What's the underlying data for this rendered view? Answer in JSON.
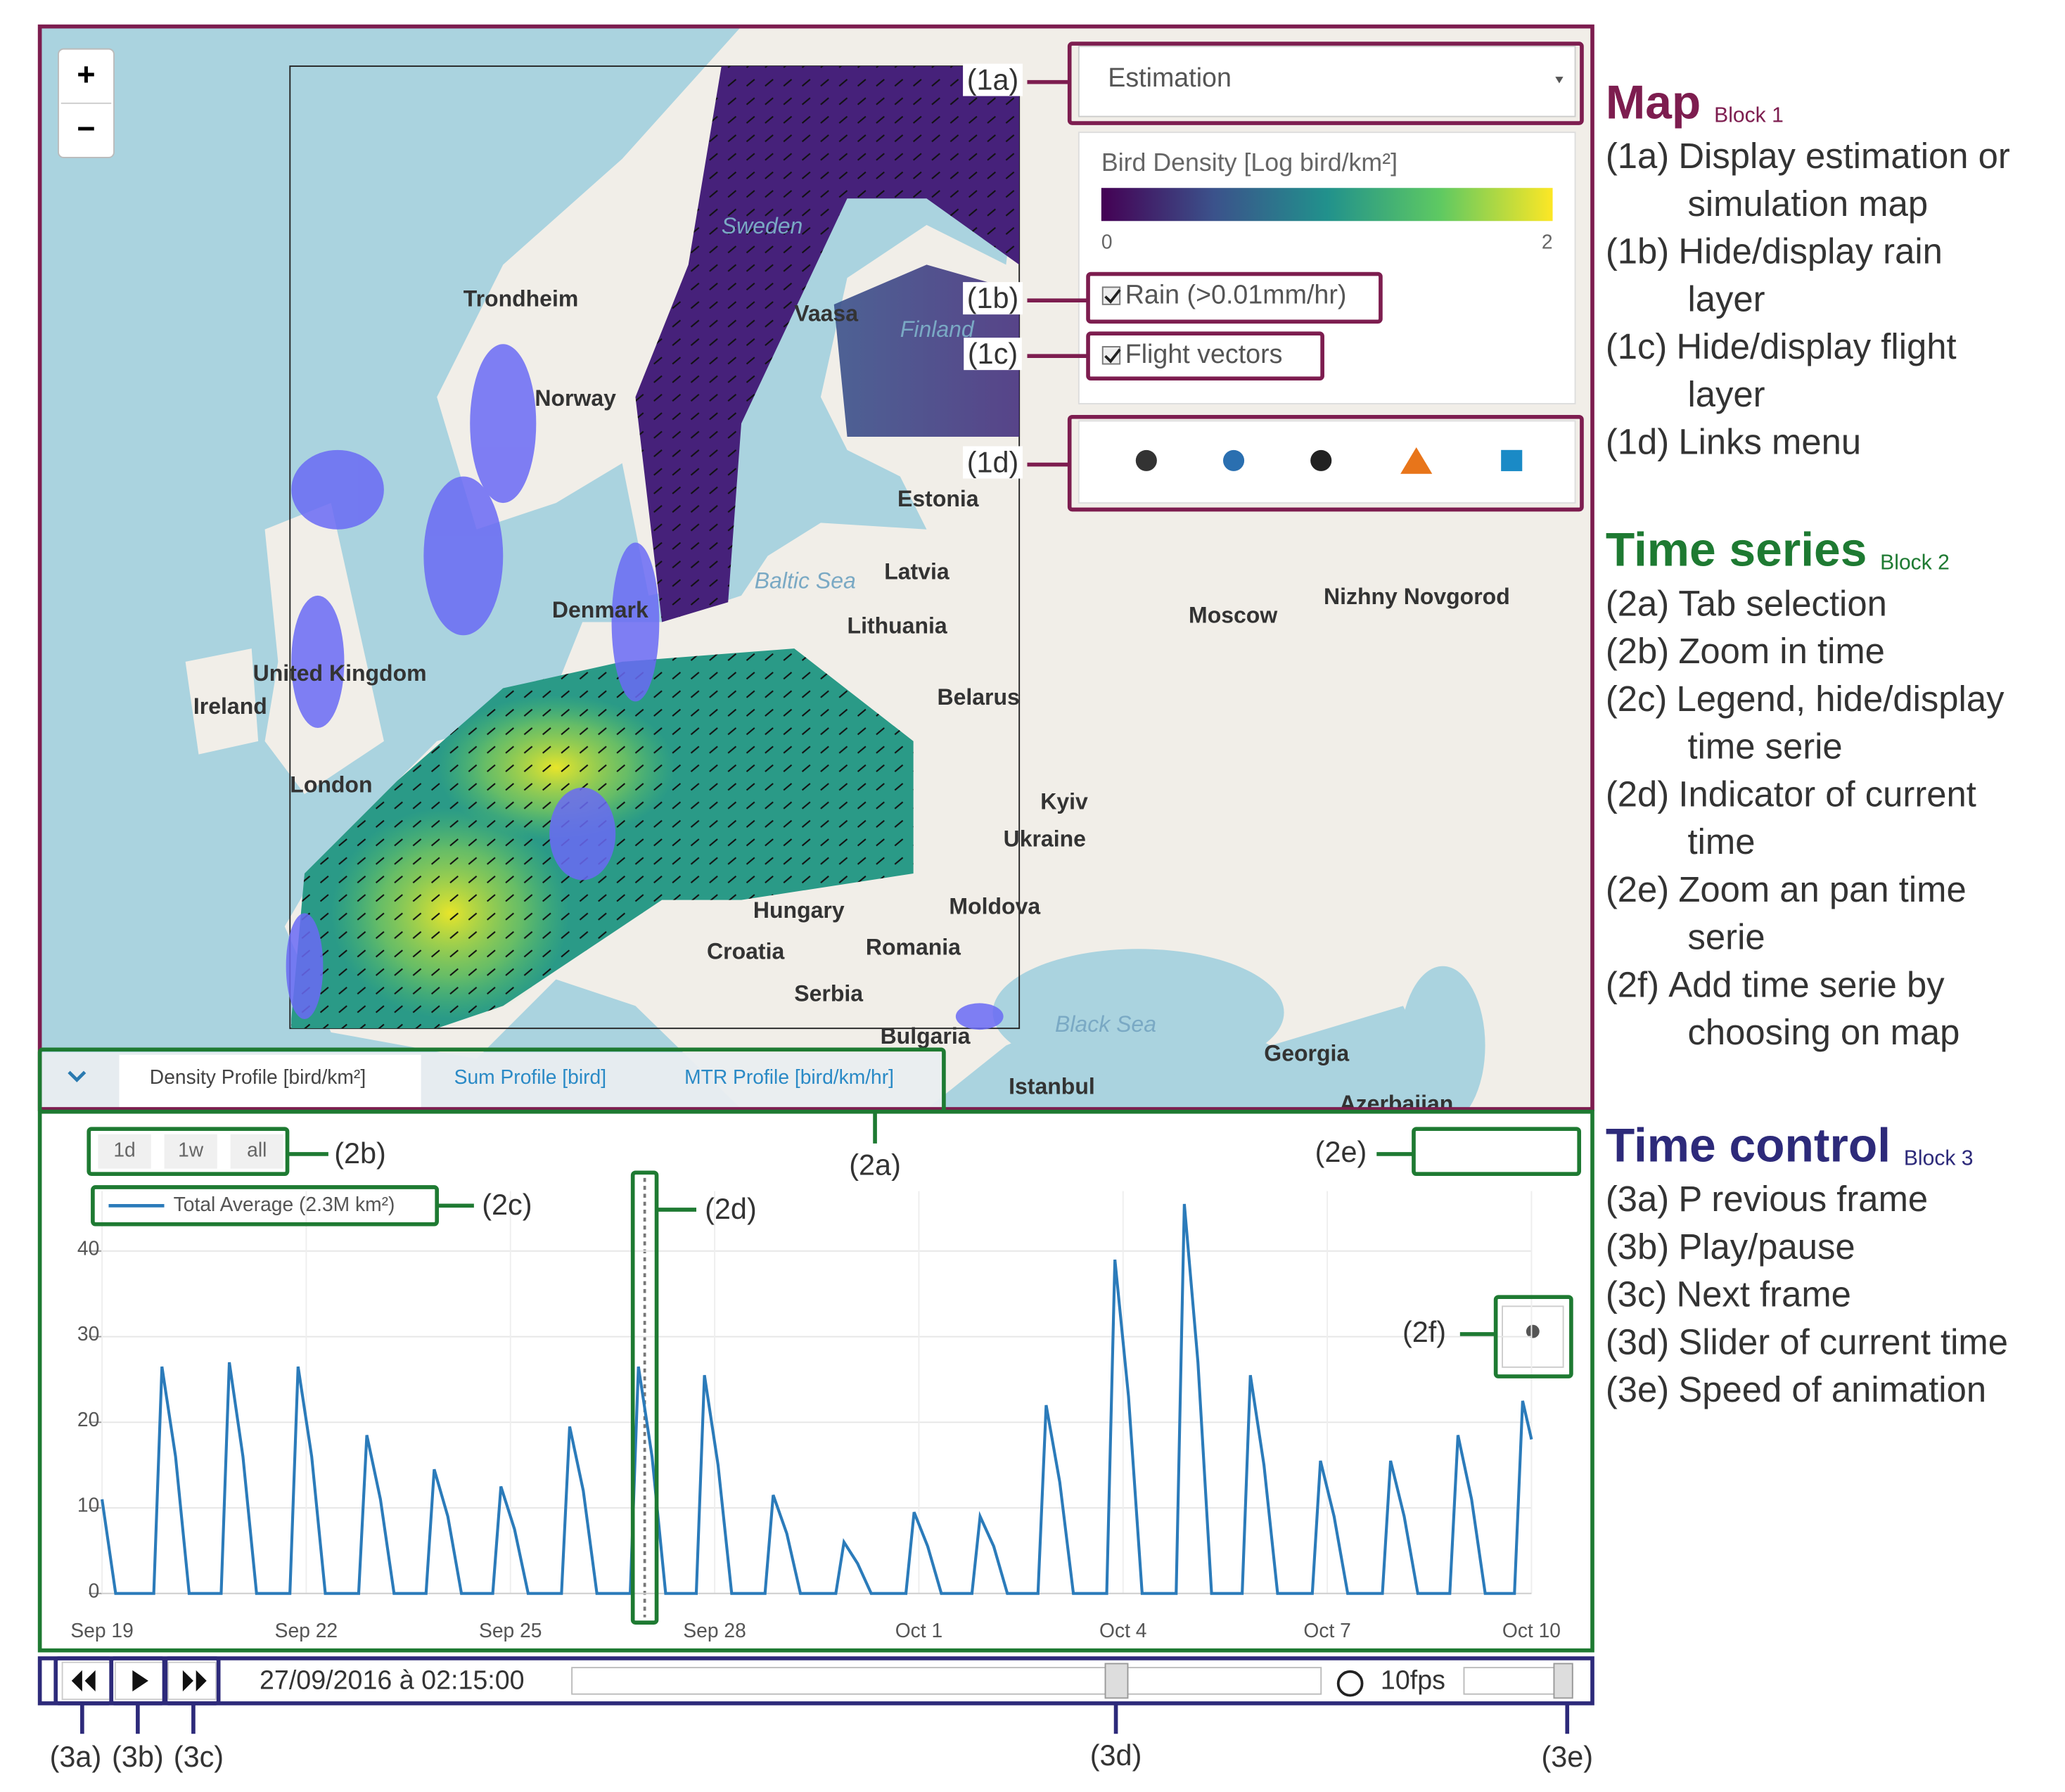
{
  "map": {
    "zoom_in": "+",
    "zoom_out": "−",
    "places": [
      "Trondheim",
      "Norway",
      "Vaasa",
      "Sweden",
      "Finland",
      "Estonia",
      "Latvia",
      "Lithuania",
      "Denmark",
      "Belarus",
      "Moscow",
      "Nizhny Novgorod",
      "Kyiv",
      "Ukraine",
      "Moldova",
      "Hungary",
      "Romania",
      "Croatia",
      "Serbia",
      "Bulgaria",
      "Istanbul",
      "Georgia",
      "Azerbaijan",
      "United Kingdom",
      "Ireland",
      "London",
      "Black Sea",
      "Baltic Sea"
    ],
    "dropdown": "Estimation",
    "legend_title": "Bird Density [Log bird/km²]",
    "colorbar_min": 0,
    "colorbar_max": 2,
    "rain_checkbox": "Rain (>0.01mm/hr)",
    "flight_checkbox": "Flight vectors"
  },
  "tabs": [
    "Density Profile [bird/km²]",
    "Sum Profile [bird]",
    "MTR Profile [bird/km/hr]"
  ],
  "range_buttons": [
    "1d",
    "1w",
    "all"
  ],
  "chart_data": {
    "type": "line",
    "series": [
      {
        "name": "Total Average (2.3M km²)",
        "color": "#2b7bba",
        "x": [
          0,
          0.2,
          0.76,
          0.88,
          1.08,
          1.28,
          1.75,
          1.87,
          2.07,
          2.27,
          2.76,
          2.88,
          3.08,
          3.28,
          3.77,
          3.89,
          4.09,
          4.29,
          4.76,
          4.88,
          5.08,
          5.28,
          5.74,
          5.86,
          6.06,
          6.26,
          6.75,
          6.87,
          7.07,
          7.27,
          7.76,
          7.88,
          8.08,
          8.28,
          8.73,
          8.85,
          9.05,
          9.25,
          9.74,
          9.86,
          10.06,
          10.26,
          10.78,
          10.9,
          11.1,
          11.3,
          11.81,
          11.93,
          12.13,
          12.33,
          12.78,
          12.9,
          13.1,
          13.3,
          13.75,
          13.87,
          14.07,
          14.27,
          14.76,
          14.88,
          15.08,
          15.28,
          15.78,
          15.9,
          16.1,
          16.3,
          16.75,
          16.87,
          17.07,
          17.27,
          17.78,
          17.9,
          18.1,
          18.3,
          18.81,
          18.93,
          19.13,
          19.33,
          19.8,
          19.92,
          20.12,
          20.32,
          20.75,
          20.87,
          21
        ],
        "values": [
          11,
          0,
          0,
          26.5,
          16,
          0,
          0,
          27,
          16,
          0,
          0,
          26.5,
          16,
          0,
          0,
          18.5,
          11,
          0,
          0,
          14.5,
          9,
          0,
          0,
          12.5,
          7.5,
          0,
          0,
          19.5,
          12,
          0,
          0,
          26.5,
          16,
          0,
          0,
          25.5,
          15,
          0,
          0,
          11.5,
          7,
          0,
          0,
          6,
          3.5,
          0,
          0,
          9.5,
          5.5,
          0,
          0,
          9,
          5.5,
          0,
          0,
          22,
          13,
          0,
          0,
          39,
          23,
          0,
          0,
          45.5,
          27,
          0,
          0,
          25.5,
          15,
          0,
          0,
          15.5,
          9,
          0,
          0,
          15.5,
          9,
          0,
          0,
          18.5,
          11,
          0,
          0,
          22.5,
          18
        ]
      }
    ],
    "xlim": [
      0,
      21
    ],
    "xticks": [
      {
        "value": 0,
        "label": "Sep 19"
      },
      {
        "value": 3,
        "label": "Sep 22"
      },
      {
        "value": 6,
        "label": "Sep 25"
      },
      {
        "value": 9,
        "label": "Sep 28"
      },
      {
        "value": 12,
        "label": "Oct 1"
      },
      {
        "value": 15,
        "label": "Oct 4"
      },
      {
        "value": 18,
        "label": "Oct 7"
      },
      {
        "value": 21,
        "label": "Oct 10"
      }
    ],
    "ylim": [
      0,
      47
    ],
    "yticks": [
      0,
      10,
      20,
      30,
      40
    ],
    "grid": true
  },
  "time_control": {
    "datetime": "27/09/2016 à 02:15:00",
    "speed": "10fps"
  },
  "callouts": [
    "(1a)",
    "(1b)",
    "(1c)",
    "(1d)",
    "(2a)",
    "(2b)",
    "(2c)",
    "(2d)",
    "(2e)",
    "(2f)",
    "(3a)",
    "(3b)",
    "(3c)",
    "(3d)",
    "(3e)"
  ],
  "description": [
    {
      "title": "Map",
      "block": "Block 1",
      "items": [
        {
          "key": "(1a)",
          "lines": [
            "Display estimation or",
            "simulation map"
          ]
        },
        {
          "key": "(1b)",
          "lines": [
            "Hide/display rain",
            "layer"
          ]
        },
        {
          "key": "(1c)",
          "lines": [
            "Hide/display flight",
            "layer"
          ]
        },
        {
          "key": "(1d)",
          "lines": [
            "Links menu"
          ]
        }
      ]
    },
    {
      "title": "Time series",
      "block": "Block 2",
      "items": [
        {
          "key": "(2a)",
          "lines": [
            "Tab selection"
          ]
        },
        {
          "key": "(2b)",
          "lines": [
            "Zoom in time"
          ]
        },
        {
          "key": "(2c)",
          "lines": [
            "Legend, hide/display",
            "time serie"
          ]
        },
        {
          "key": "(2d)",
          "lines": [
            "Indicator of current",
            "time"
          ]
        },
        {
          "key": "(2e)",
          "lines": [
            "Zoom an pan time",
            "serie"
          ]
        },
        {
          "key": "(2f)",
          "lines": [
            "Add time serie by",
            "choosing on map"
          ]
        }
      ]
    },
    {
      "title": "Time control",
      "block": "Block 3",
      "items": [
        {
          "key": "(3a)",
          "lines": [
            "P revious frame"
          ]
        },
        {
          "key": "(3b)",
          "lines": [
            "Play/pause"
          ]
        },
        {
          "key": "(3c)",
          "lines": [
            "Next frame"
          ]
        },
        {
          "key": "(3d)",
          "lines": [
            "Slider of current time"
          ]
        },
        {
          "key": "(3e)",
          "lines": [
            "Speed of animation"
          ]
        }
      ]
    }
  ]
}
